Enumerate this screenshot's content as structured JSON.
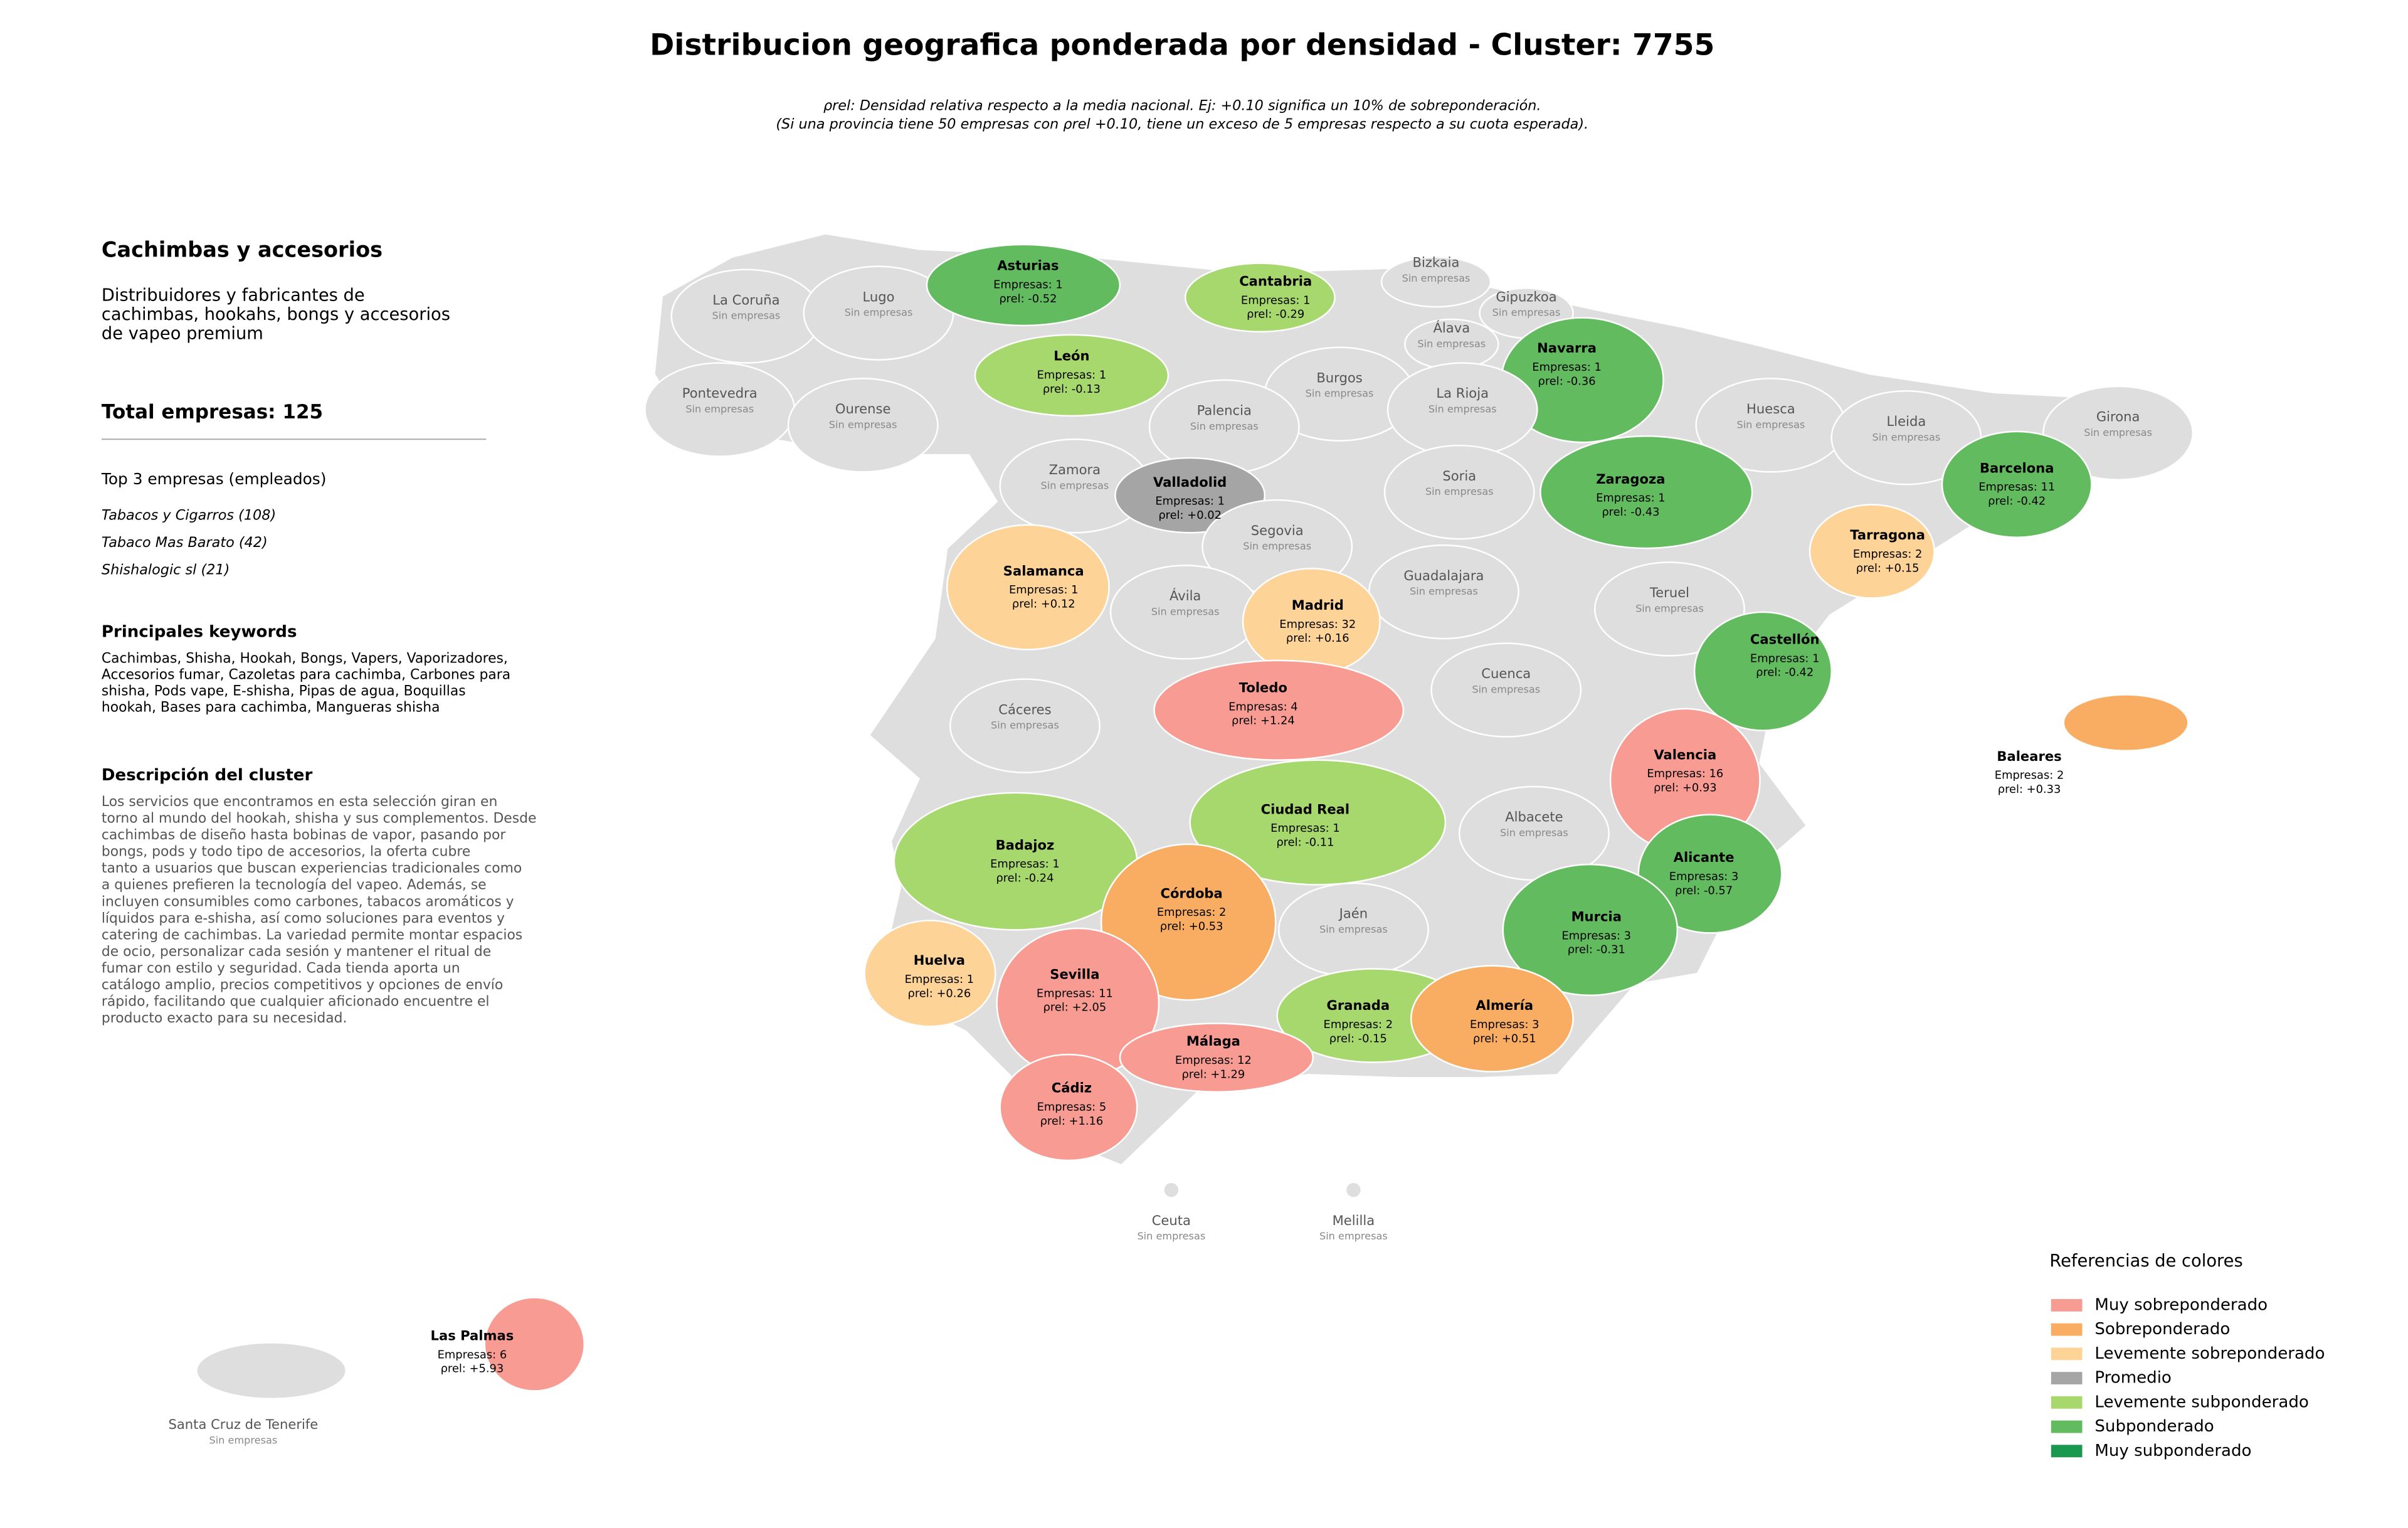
{
  "header": {
    "title": "Distribucion geografica ponderada por densidad - Cluster: 7755",
    "subtitle": [
      "ρrel: Densidad relativa respecto a la media nacional. Ej: +0.10 significa un 10% de sobreponderación.",
      "(Si una provincia tiene 50 empresas con ρrel +0.10, tiene un exceso de 5 empresas respecto a su cuota esperada)."
    ]
  },
  "sidebar": {
    "heading": "Cachimbas y accesorios",
    "description": [
      "Distribuidores y fabricantes de",
      "cachimbas, hookahs, bongs y accesorios",
      "de vapeo premium"
    ],
    "total": "Total empresas: 125",
    "top_heading": "Top 3 empresas (empleados)",
    "top": [
      "Tabacos y Cigarros (108)",
      "Tabaco Mas Barato (42)",
      "Shishalogic sl (21)"
    ],
    "keywords_heading": "Principales keywords",
    "keywords": [
      "Cachimbas, Shisha, Hookah, Bongs, Vapers, Vaporizadores,",
      "Accesorios fumar, Cazoletas para cachimba, Carbones para",
      "shisha, Pods vape, E-shisha, Pipas de agua, Boquillas",
      "hookah, Bases para cachimba, Mangueras shisha"
    ],
    "cluster_heading": "Descripción del cluster",
    "cluster_description": [
      "Los servicios que encontramos en esta selección giran en",
      "torno al mundo del hookah, shisha y sus complementos. Desde",
      "cachimbas de diseño hasta bobinas de vapor, pasando por",
      "bongs, pods y todo tipo de accesorios, la oferta cubre",
      "tanto a usuarios que buscan experiencias tradicionales como",
      "a quienes prefieren la tecnología del vapeo. Además, se",
      "incluyen consumibles como carbones, tabacos aromáticos y",
      "líquidos para e-shisha, así como soluciones para eventos y",
      "catering de cachimbas. La variedad permite montar espacios",
      "de ocio, personalizar cada sesión y mantener el ritual de",
      "fumar con estilo y seguridad. Cada tienda aporta un",
      "catálogo amplio, precios competitivos y opciones de envío",
      "rápido, facilitando que cualquier aficionado encuentre el",
      "producto exacto para su necesidad."
    ]
  },
  "map": {
    "no_data_color": "#dedede",
    "provinces": [
      {
        "name": "La Coruña",
        "status": "Sin empresas"
      },
      {
        "name": "Lugo",
        "status": "Sin empresas"
      },
      {
        "name": "Asturias",
        "color": "#63bb5f",
        "empresas": "Empresas: 1",
        "density": "ρrel: -0.52"
      },
      {
        "name": "Cantabria",
        "color": "#a6d86e",
        "empresas": "Empresas: 1",
        "density": "ρrel: -0.29"
      },
      {
        "name": "Bizkaia",
        "status": "Sin empresas"
      },
      {
        "name": "Gipuzkoa",
        "status": "Sin empresas"
      },
      {
        "name": "Álava",
        "status": "Sin empresas"
      },
      {
        "name": "Navarra",
        "color": "#63bb5f",
        "empresas": "Empresas: 1",
        "density": "ρrel: -0.36"
      },
      {
        "name": "Pontevedra",
        "status": "Sin empresas"
      },
      {
        "name": "Ourense",
        "status": "Sin empresas"
      },
      {
        "name": "León",
        "color": "#a6d86e",
        "empresas": "Empresas: 1",
        "density": "ρrel: -0.13"
      },
      {
        "name": "Burgos",
        "status": "Sin empresas"
      },
      {
        "name": "La Rioja",
        "status": "Sin empresas"
      },
      {
        "name": "Palencia",
        "status": "Sin empresas"
      },
      {
        "name": "Huesca",
        "status": "Sin empresas"
      },
      {
        "name": "Lleida",
        "status": "Sin empresas"
      },
      {
        "name": "Girona",
        "status": "Sin empresas"
      },
      {
        "name": "Zamora",
        "status": "Sin empresas"
      },
      {
        "name": "Valladolid",
        "color": "#a5a5a5",
        "empresas": "Empresas: 1",
        "density": "ρrel: +0.02"
      },
      {
        "name": "Soria",
        "status": "Sin empresas"
      },
      {
        "name": "Zaragoza",
        "color": "#63bb5f",
        "empresas": "Empresas: 1",
        "density": "ρrel: -0.43"
      },
      {
        "name": "Barcelona",
        "color": "#63bb5f",
        "empresas": "Empresas: 11",
        "density": "ρrel: -0.42"
      },
      {
        "name": "Segovia",
        "status": "Sin empresas"
      },
      {
        "name": "Tarragona",
        "color": "#fdd397",
        "empresas": "Empresas: 2",
        "density": "ρrel: +0.15"
      },
      {
        "name": "Salamanca",
        "color": "#fdd397",
        "empresas": "Empresas: 1",
        "density": "ρrel: +0.12"
      },
      {
        "name": "Guadalajara",
        "status": "Sin empresas"
      },
      {
        "name": "Ávila",
        "status": "Sin empresas"
      },
      {
        "name": "Madrid",
        "color": "#fdd397",
        "empresas": "Empresas: 32",
        "density": "ρrel: +0.16"
      },
      {
        "name": "Teruel",
        "status": "Sin empresas"
      },
      {
        "name": "Castellón",
        "color": "#63bb5f",
        "empresas": "Empresas: 1",
        "density": "ρrel: -0.42"
      },
      {
        "name": "Cuenca",
        "status": "Sin empresas"
      },
      {
        "name": "Toledo",
        "color": "#f89c93",
        "empresas": "Empresas: 4",
        "density": "ρrel: +1.24"
      },
      {
        "name": "Cáceres",
        "status": "Sin empresas"
      },
      {
        "name": "Valencia",
        "color": "#f89c93",
        "empresas": "Empresas: 16",
        "density": "ρrel: +0.93"
      },
      {
        "name": "Baleares",
        "color": "#f8ad63",
        "empresas": "Empresas: 2",
        "density": "ρrel: +0.33"
      },
      {
        "name": "Ciudad Real",
        "color": "#a6d86e",
        "empresas": "Empresas: 1",
        "density": "ρrel: -0.11"
      },
      {
        "name": "Albacete",
        "status": "Sin empresas"
      },
      {
        "name": "Badajoz",
        "color": "#a6d86e",
        "empresas": "Empresas: 1",
        "density": "ρrel: -0.24"
      },
      {
        "name": "Alicante",
        "color": "#63bb5f",
        "empresas": "Empresas: 3",
        "density": "ρrel: -0.57"
      },
      {
        "name": "Córdoba",
        "color": "#f8ad63",
        "empresas": "Empresas: 2",
        "density": "ρrel: +0.53"
      },
      {
        "name": "Jaén",
        "status": "Sin empresas"
      },
      {
        "name": "Murcia",
        "color": "#63bb5f",
        "empresas": "Empresas: 3",
        "density": "ρrel: -0.31"
      },
      {
        "name": "Huelva",
        "color": "#fdd397",
        "empresas": "Empresas: 1",
        "density": "ρrel: +0.26"
      },
      {
        "name": "Sevilla",
        "color": "#f89c93",
        "empresas": "Empresas: 11",
        "density": "ρrel: +2.05"
      },
      {
        "name": "Granada",
        "color": "#a6d86e",
        "empresas": "Empresas: 2",
        "density": "ρrel: -0.15"
      },
      {
        "name": "Almería",
        "color": "#f8ad63",
        "empresas": "Empresas: 3",
        "density": "ρrel: +0.51"
      },
      {
        "name": "Málaga",
        "color": "#f89c93",
        "empresas": "Empresas: 12",
        "density": "ρrel: +1.29"
      },
      {
        "name": "Cádiz",
        "color": "#f89c93",
        "empresas": "Empresas: 5",
        "density": "ρrel: +1.16"
      },
      {
        "name": "Ceuta",
        "status": "Sin empresas"
      },
      {
        "name": "Melilla",
        "status": "Sin empresas"
      },
      {
        "name": "Las Palmas",
        "color": "#f89c93",
        "empresas": "Empresas: 6",
        "density": "ρrel: +5.93"
      },
      {
        "name": "Santa Cruz de Tenerife",
        "status": "Sin empresas"
      }
    ]
  },
  "legend": {
    "title": "Referencias de colores",
    "items": [
      {
        "label": "Muy sobreponderado",
        "color": "#f89c93"
      },
      {
        "label": "Sobreponderado",
        "color": "#f8ad63"
      },
      {
        "label": "Levemente sobreponderado",
        "color": "#fdd397"
      },
      {
        "label": "Promedio",
        "color": "#a5a5a5"
      },
      {
        "label": "Levemente subponderado",
        "color": "#a6d86e"
      },
      {
        "label": "Subponderado",
        "color": "#63bb5f"
      },
      {
        "label": "Muy subponderado",
        "color": "#1a9850"
      }
    ]
  }
}
